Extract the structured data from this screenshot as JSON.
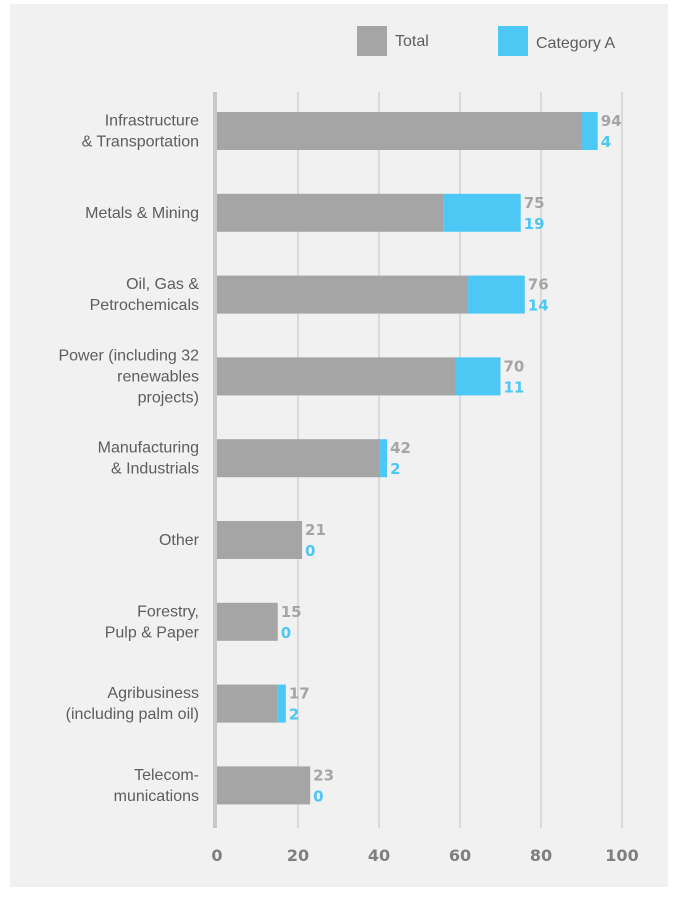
{
  "chart_data": {
    "type": "bar",
    "orientation": "horizontal",
    "stacked": true,
    "title": "",
    "xlabel": "",
    "ylabel": "",
    "xlim": [
      0,
      100
    ],
    "x_ticks": [
      "0",
      "20",
      "40",
      "60",
      "80",
      "100"
    ],
    "grid": true,
    "legend_position": "top-right",
    "categories": [
      [
        "Infrastructure",
        "& Transportation"
      ],
      [
        "Metals & Mining"
      ],
      [
        "Oil, Gas &",
        "Petrochemicals"
      ],
      [
        "Power (including 32",
        "renewables",
        "projects)"
      ],
      [
        "Manufacturing",
        "& Industrials"
      ],
      [
        "Other"
      ],
      [
        "Forestry,",
        "Pulp & Paper"
      ],
      [
        "Agribusiness",
        "(including palm oil)"
      ],
      [
        "Telecom-",
        "munications"
      ]
    ],
    "series": [
      {
        "name": "Total",
        "color": "#a5a5a5",
        "values": [
          94,
          75,
          76,
          70,
          42,
          21,
          15,
          17,
          23
        ]
      },
      {
        "name": "Category A",
        "color": "#4dc7f4",
        "values": [
          4,
          19,
          14,
          11,
          2,
          0,
          0,
          2,
          0
        ]
      }
    ]
  },
  "colors": {
    "background": "#f1f1f1",
    "total": "#a5a5a5",
    "category_a": "#4dc7f4",
    "grid": "#d2d2d2",
    "axis": "#c8c8c8",
    "text": "#5d5d5d",
    "tick": "#7f7f7f"
  }
}
